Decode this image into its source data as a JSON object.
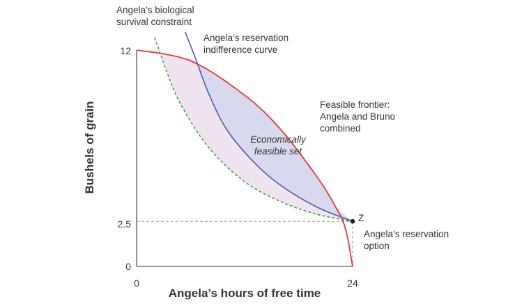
{
  "colors": {
    "frontier": "#e23b35",
    "indifference": "#4e5aa8",
    "survival": "#3ea044",
    "feasible_fill": "#d8d9ee",
    "survival_fill": "#f1e4f1",
    "axis": "#555555",
    "dashed": "#9a9a9a",
    "point": "#222222"
  },
  "axes": {
    "x_title": "Angela’s hours of free time",
    "y_title": "Bushels of grain",
    "x_ticks": [
      "0",
      "24"
    ],
    "y_ticks": [
      "12",
      "2.5",
      "0"
    ]
  },
  "labels": {
    "survival": [
      "Angela’s biological",
      "survival constraint"
    ],
    "indifference": [
      "Angela’s reservation",
      "indifference curve"
    ],
    "frontier": [
      "Feasible frontier:",
      "Angela and Bruno",
      "combined"
    ],
    "feasible_set": [
      "Economically",
      "feasible set"
    ],
    "point_z": "Z",
    "reservation_option": [
      "Angela’s reservation",
      "option"
    ]
  },
  "chart_data": {
    "type": "line",
    "xlabel": "Angela’s hours of free time",
    "ylabel": "Bushels of grain",
    "xlim": [
      0,
      24
    ],
    "ylim": [
      0,
      12
    ],
    "series": [
      {
        "name": "Feasible frontier: Angela and Bruno combined",
        "x": [
          0,
          6,
          12,
          16,
          20,
          22,
          23.2,
          24
        ],
        "y": [
          12,
          11.4,
          9.5,
          7.6,
          5.0,
          3.4,
          2.1,
          0
        ]
      },
      {
        "name": "Angela’s reservation indifference curve",
        "x": [
          5.4,
          6.5,
          8,
          10,
          13,
          16,
          20,
          24
        ],
        "y": [
          13.0,
          11.6,
          9.6,
          7.6,
          5.8,
          4.5,
          3.3,
          2.5
        ]
      },
      {
        "name": "Angela’s biological survival constraint",
        "x": [
          2.0,
          2.5,
          3.5,
          5,
          8,
          12,
          16,
          20,
          24
        ],
        "y": [
          12.7,
          12.0,
          10.6,
          8.9,
          6.6,
          4.7,
          3.6,
          2.9,
          2.5
        ]
      }
    ],
    "points": [
      {
        "label": "Z",
        "x": 24,
        "y": 2.5
      }
    ]
  }
}
